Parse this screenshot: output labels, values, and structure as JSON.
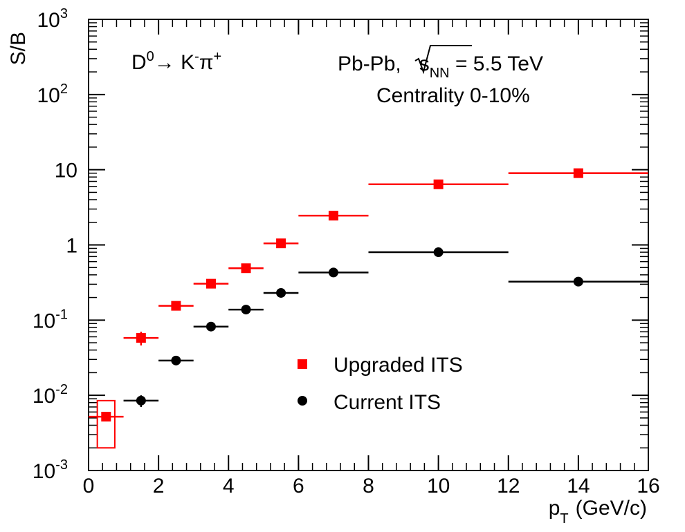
{
  "chart_data": {
    "type": "scatter",
    "xlabel_main": "p",
    "xlabel_sub": "T",
    "xlabel_unit": "(GeV/c)",
    "ylabel": "S/B",
    "xlim": [
      0,
      16
    ],
    "ylim": [
      0.001,
      1000
    ],
    "yscale": "log",
    "grid": false,
    "legend_position": "center-right",
    "x_ticks": [
      "0",
      "2",
      "4",
      "6",
      "8",
      "10",
      "12",
      "14",
      "16"
    ],
    "y_ticks": [
      {
        "value": 0.001,
        "base": "10",
        "exp": "-3"
      },
      {
        "value": 0.01,
        "base": "10",
        "exp": "-2"
      },
      {
        "value": 0.1,
        "base": "10",
        "exp": "-1"
      },
      {
        "value": 1,
        "base": "1",
        "exp": ""
      },
      {
        "value": 10,
        "base": "10",
        "exp": ""
      },
      {
        "value": 100,
        "base": "10",
        "exp": "2"
      },
      {
        "value": 1000,
        "base": "10",
        "exp": "3"
      }
    ],
    "decay_label": {
      "d": "D",
      "d_sup": "0",
      "arrow": "→",
      "k": " K",
      "k_sup": "-",
      "pi": "π",
      "pi_sup": "+"
    },
    "system_label": {
      "prefix": "Pb-Pb,",
      "s": "s",
      "s_sub": "NN",
      "suffix": " = 5.5 TeV"
    },
    "centrality_label": "Centrality 0-10%",
    "series": [
      {
        "name": "Upgraded ITS",
        "color": "#ff0000",
        "marker": "square",
        "x_low": [
          0,
          1,
          2,
          3,
          4,
          5,
          6,
          8,
          12
        ],
        "x_high": [
          1,
          2,
          3,
          4,
          5,
          6,
          8,
          12,
          16
        ],
        "x": [
          0.5,
          1.5,
          2.5,
          3.5,
          4.5,
          5.5,
          7,
          10,
          14
        ],
        "y": [
          0.0052,
          0.058,
          0.155,
          0.305,
          0.49,
          1.05,
          2.45,
          6.4,
          9.0
        ],
        "y_err": [
          0,
          0.012,
          0,
          0,
          0,
          0,
          0,
          0,
          0
        ],
        "syst_box": {
          "x_low": 0.25,
          "x_high": 0.75,
          "y_low": 0.002,
          "y_high": 0.0085
        }
      },
      {
        "name": "Current ITS",
        "color": "#000000",
        "marker": "circle",
        "x_low": [
          1,
          2,
          3,
          4,
          5,
          6,
          8,
          12
        ],
        "x_high": [
          2,
          3,
          4,
          5,
          6,
          8,
          12,
          16
        ],
        "x": [
          1.5,
          2.5,
          3.5,
          4.5,
          5.5,
          7,
          10,
          14
        ],
        "y": [
          0.0085,
          0.029,
          0.082,
          0.138,
          0.23,
          0.43,
          0.8,
          0.325
        ],
        "y_err": [
          0.0015,
          0,
          0,
          0,
          0,
          0,
          0,
          0.03
        ]
      }
    ]
  }
}
